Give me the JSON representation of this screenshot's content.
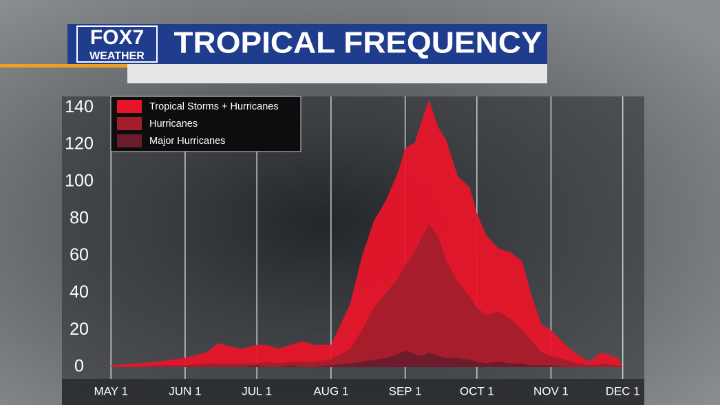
{
  "logo": {
    "brand": "FOX7",
    "sub": "WEATHER"
  },
  "chart_data": {
    "type": "area",
    "title": "TROPICAL FREQUENCY",
    "x": [
      0,
      10,
      20,
      31,
      40,
      45,
      50,
      55,
      61,
      65,
      70,
      75,
      80,
      85,
      92,
      100,
      105,
      110,
      115,
      120,
      123,
      127,
      130,
      133,
      137,
      140,
      145,
      150,
      153,
      157,
      162,
      167,
      172,
      176,
      180,
      184,
      190,
      195,
      200,
      205,
      212,
      214
    ],
    "series": [
      {
        "name": "Tropical Storms + Hurricanes",
        "color": "#e8152a",
        "values": [
          1,
          2,
          3,
          5,
          8,
          13,
          11,
          10,
          12,
          12,
          10,
          12,
          14,
          12,
          12,
          34,
          60,
          79,
          90,
          105,
          118,
          121,
          133,
          144,
          129,
          123,
          103,
          97,
          83,
          71,
          64,
          62,
          57,
          38,
          23,
          20,
          12,
          7,
          3,
          8,
          5,
          0
        ]
      },
      {
        "name": "Hurricanes",
        "color": "#a31d2b",
        "values": [
          0,
          0,
          1,
          1,
          2,
          2,
          2,
          2,
          2,
          3,
          2,
          3,
          3,
          3,
          4,
          10,
          20,
          32,
          40,
          48,
          55,
          62,
          70,
          77,
          70,
          58,
          46,
          38,
          32,
          28,
          30,
          26,
          20,
          14,
          8,
          6,
          4,
          2,
          1,
          2,
          1,
          0
        ]
      },
      {
        "name": "Major Hurricanes",
        "color": "#6a1b2d",
        "values": [
          0,
          0,
          0,
          0,
          0,
          0,
          0,
          0,
          1,
          0,
          0,
          1,
          0,
          0,
          1,
          2,
          3,
          4,
          5,
          7,
          9,
          7,
          6,
          8,
          6,
          5,
          5,
          4,
          3,
          2,
          3,
          2,
          2,
          1,
          1,
          1,
          0,
          0,
          0,
          0,
          0,
          0
        ]
      }
    ],
    "xlim": [
      -20.5,
      223
    ],
    "xticks": [
      {
        "value": 0,
        "label": "MAY 1"
      },
      {
        "value": 31,
        "label": "JUN 1"
      },
      {
        "value": 61,
        "label": "JUL 1"
      },
      {
        "value": 92,
        "label": "AUG 1"
      },
      {
        "value": 123,
        "label": "SEP 1"
      },
      {
        "value": 153,
        "label": "OCT 1"
      },
      {
        "value": 184,
        "label": "NOV 1"
      },
      {
        "value": 214,
        "label": "DEC 1"
      }
    ],
    "ylim": [
      -6.3,
      146
    ],
    "yticks": [
      0,
      20,
      40,
      60,
      80,
      100,
      120,
      140
    ],
    "grid": true,
    "legend": "top-left"
  }
}
